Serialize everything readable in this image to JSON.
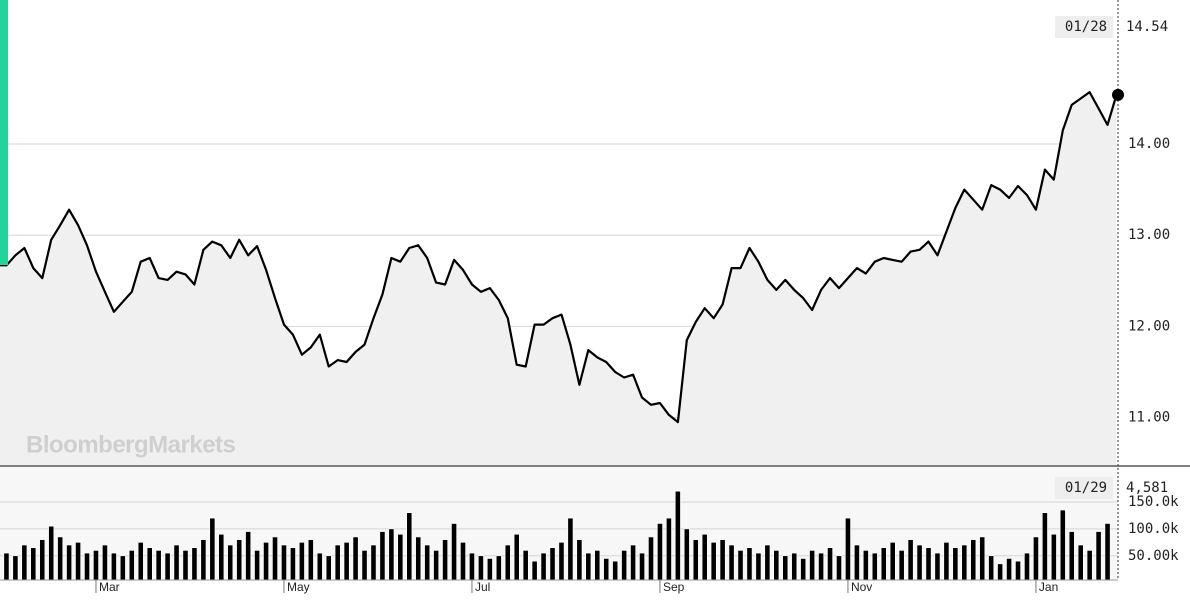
{
  "chart_data": [
    {
      "type": "line",
      "color": "#000000",
      "watermark": "BloombergMarkets",
      "readout_date": "01/28",
      "grid": true,
      "ylim": [
        10.48,
        15.58
      ],
      "yticks": [
        {
          "value": 11,
          "label": "11.00"
        },
        {
          "value": 12,
          "label": "12.00"
        },
        {
          "value": 13,
          "label": "13.00"
        },
        {
          "value": 14,
          "label": "14.00"
        }
      ],
      "values": [
        12.67,
        12.67,
        12.78,
        12.86,
        12.64,
        12.53,
        12.95,
        13.11,
        13.28,
        13.11,
        12.89,
        12.6,
        12.38,
        12.16,
        12.27,
        12.38,
        12.71,
        12.75,
        12.53,
        12.51,
        12.6,
        12.57,
        12.46,
        12.84,
        12.93,
        12.89,
        12.75,
        12.95,
        12.78,
        12.88,
        12.62,
        12.31,
        12.02,
        11.91,
        11.69,
        11.77,
        11.91,
        11.56,
        11.63,
        11.61,
        11.72,
        11.8,
        12.09,
        12.35,
        12.75,
        12.71,
        12.86,
        12.89,
        12.75,
        12.48,
        12.46,
        12.73,
        12.62,
        12.46,
        12.38,
        12.42,
        12.29,
        12.09,
        11.58,
        11.56,
        12.02,
        12.02,
        12.09,
        12.13,
        11.8,
        11.36,
        11.74,
        11.66,
        11.61,
        11.5,
        11.44,
        11.47,
        11.22,
        11.14,
        11.16,
        11.03,
        10.95,
        11.85,
        12.05,
        12.2,
        12.09,
        12.24,
        12.64,
        12.64,
        12.86,
        12.71,
        12.51,
        12.4,
        12.51,
        12.4,
        12.31,
        12.18,
        12.4,
        12.53,
        12.42,
        12.53,
        12.64,
        12.58,
        12.71,
        12.75,
        12.73,
        12.71,
        12.82,
        12.84,
        12.93,
        12.78,
        13.04,
        13.3,
        13.5,
        13.39,
        13.28,
        13.55,
        13.5,
        13.41,
        13.54,
        13.44,
        13.28,
        13.72,
        13.61,
        14.15,
        14.43,
        14.5,
        14.57,
        14.39,
        14.21,
        14.54
      ]
    },
    {
      "type": "bar",
      "color": "#000000",
      "grid": true,
      "readout": {
        "date": "01/29",
        "label": "4,581"
      },
      "ylim": [
        5000,
        215000
      ],
      "yticks": [
        {
          "value": 50000,
          "label": "50.00k"
        },
        {
          "value": 100000,
          "label": "100.0k"
        },
        {
          "value": 150000,
          "label": "150.0k"
        }
      ],
      "categories": [
        null,
        null,
        null,
        null,
        null,
        null,
        null,
        null,
        null,
        null,
        null,
        "Mar",
        null,
        null,
        null,
        null,
        null,
        null,
        null,
        null,
        null,
        null,
        null,
        null,
        null,
        null,
        null,
        null,
        null,
        null,
        null,
        null,
        "May",
        null,
        null,
        null,
        null,
        null,
        null,
        null,
        null,
        null,
        null,
        null,
        null,
        null,
        null,
        null,
        null,
        null,
        null,
        null,
        null,
        "Jul",
        null,
        null,
        null,
        null,
        null,
        null,
        null,
        null,
        null,
        null,
        null,
        null,
        null,
        null,
        null,
        null,
        null,
        null,
        null,
        null,
        "Sep",
        null,
        null,
        null,
        null,
        null,
        null,
        null,
        null,
        null,
        null,
        null,
        null,
        null,
        null,
        null,
        null,
        null,
        null,
        null,
        null,
        "Nov",
        null,
        null,
        null,
        null,
        null,
        null,
        null,
        null,
        null,
        null,
        null,
        null,
        null,
        null,
        null,
        null,
        null,
        null,
        null,
        null,
        "Jan",
        null,
        null,
        null,
        null,
        null,
        null,
        null,
        null,
        null
      ],
      "values": [
        60000,
        55000,
        50000,
        70000,
        65000,
        80000,
        105000,
        85000,
        70000,
        75000,
        55000,
        60000,
        70000,
        55000,
        50000,
        60000,
        75000,
        65000,
        60000,
        55000,
        70000,
        60000,
        65000,
        80000,
        120000,
        90000,
        70000,
        80000,
        95000,
        60000,
        75000,
        85000,
        70000,
        65000,
        75000,
        80000,
        55000,
        50000,
        70000,
        75000,
        85000,
        60000,
        70000,
        95000,
        100000,
        90000,
        130000,
        85000,
        70000,
        60000,
        80000,
        110000,
        75000,
        55000,
        50000,
        45000,
        50000,
        70000,
        90000,
        60000,
        40000,
        55000,
        65000,
        75000,
        120000,
        80000,
        55000,
        60000,
        45000,
        40000,
        60000,
        70000,
        55000,
        85000,
        110000,
        120000,
        170000,
        100000,
        80000,
        90000,
        75000,
        80000,
        70000,
        60000,
        65000,
        55000,
        70000,
        60000,
        50000,
        55000,
        45000,
        60000,
        55000,
        65000,
        50000,
        120000,
        70000,
        60000,
        55000,
        65000,
        75000,
        60000,
        80000,
        70000,
        65000,
        55000,
        75000,
        65000,
        70000,
        80000,
        85000,
        50000,
        35000,
        45000,
        40000,
        55000,
        85000,
        130000,
        90000,
        135000,
        95000,
        70000,
        60000,
        95000,
        110000,
        4581
      ]
    }
  ]
}
